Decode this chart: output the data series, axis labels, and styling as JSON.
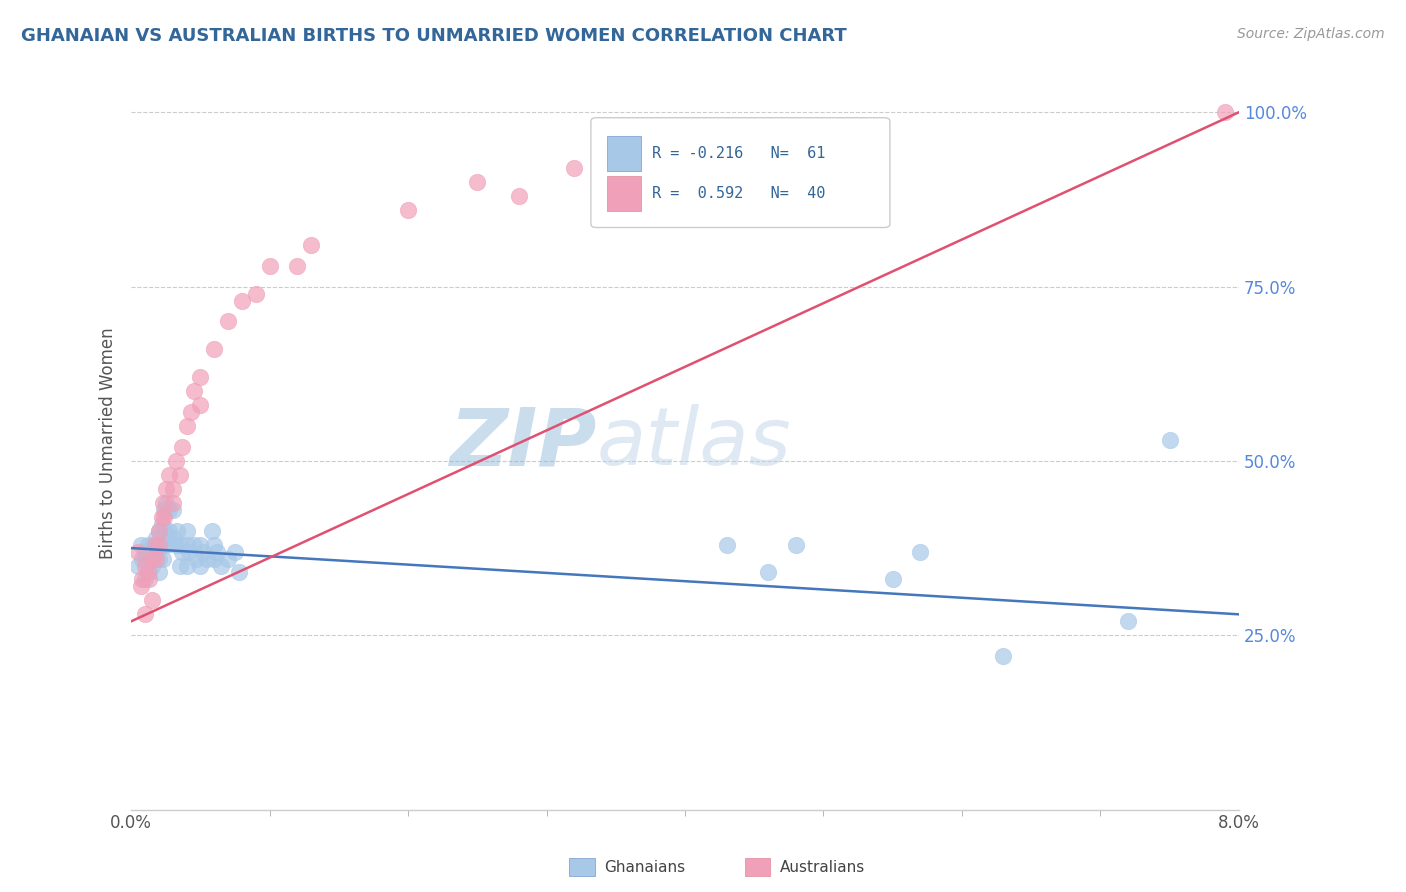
{
  "title": "GHANAIAN VS AUSTRALIAN BIRTHS TO UNMARRIED WOMEN CORRELATION CHART",
  "source": "Source: ZipAtlas.com",
  "ylabel": "Births to Unmarried Women",
  "ghanaian_color": "#a8c8e8",
  "australian_color": "#f0a0b8",
  "ghanaian_line_color": "#4477bb",
  "australian_line_color": "#e05070",
  "watermark_zip": "ZIP",
  "watermark_atlas": "atlas",
  "xmin": 0.0,
  "xmax": 0.08,
  "ymin": 0.0,
  "ymax": 1.05,
  "ghanaian_x": [
    0.0005,
    0.0007,
    0.0008,
    0.001,
    0.001,
    0.001,
    0.0012,
    0.0012,
    0.0013,
    0.0015,
    0.0015,
    0.0016,
    0.0017,
    0.0018,
    0.0018,
    0.002,
    0.002,
    0.002,
    0.0022,
    0.0022,
    0.0023,
    0.0023,
    0.0024,
    0.0024,
    0.0025,
    0.0025,
    0.0027,
    0.0027,
    0.003,
    0.003,
    0.0032,
    0.0033,
    0.0035,
    0.0035,
    0.0037,
    0.004,
    0.004,
    0.004,
    0.0042,
    0.0045,
    0.0047,
    0.005,
    0.005,
    0.0052,
    0.0055,
    0.0058,
    0.006,
    0.006,
    0.0062,
    0.0065,
    0.007,
    0.0075,
    0.0078,
    0.043,
    0.046,
    0.048,
    0.055,
    0.057,
    0.063,
    0.072,
    0.075
  ],
  "ghanaian_y": [
    0.35,
    0.38,
    0.36,
    0.37,
    0.33,
    0.36,
    0.36,
    0.38,
    0.34,
    0.37,
    0.35,
    0.38,
    0.36,
    0.39,
    0.37,
    0.4,
    0.36,
    0.34,
    0.41,
    0.38,
    0.38,
    0.36,
    0.43,
    0.4,
    0.44,
    0.38,
    0.43,
    0.4,
    0.43,
    0.39,
    0.38,
    0.4,
    0.38,
    0.35,
    0.37,
    0.4,
    0.38,
    0.35,
    0.37,
    0.38,
    0.36,
    0.38,
    0.35,
    0.37,
    0.36,
    0.4,
    0.38,
    0.36,
    0.37,
    0.35,
    0.36,
    0.37,
    0.34,
    0.38,
    0.34,
    0.38,
    0.33,
    0.37,
    0.22,
    0.27,
    0.53
  ],
  "australian_x": [
    0.0005,
    0.0007,
    0.0008,
    0.001,
    0.001,
    0.0012,
    0.0013,
    0.0015,
    0.0015,
    0.0017,
    0.0018,
    0.002,
    0.002,
    0.0022,
    0.0023,
    0.0024,
    0.0025,
    0.0027,
    0.003,
    0.003,
    0.0032,
    0.0035,
    0.0037,
    0.004,
    0.0043,
    0.0045,
    0.005,
    0.005,
    0.006,
    0.007,
    0.008,
    0.009,
    0.01,
    0.012,
    0.013,
    0.02,
    0.025,
    0.028,
    0.032,
    0.079
  ],
  "australian_y": [
    0.37,
    0.32,
    0.33,
    0.35,
    0.28,
    0.34,
    0.33,
    0.36,
    0.3,
    0.38,
    0.36,
    0.4,
    0.38,
    0.42,
    0.44,
    0.42,
    0.46,
    0.48,
    0.46,
    0.44,
    0.5,
    0.48,
    0.52,
    0.55,
    0.57,
    0.6,
    0.62,
    0.58,
    0.66,
    0.7,
    0.73,
    0.74,
    0.78,
    0.78,
    0.81,
    0.86,
    0.9,
    0.88,
    0.92,
    1.0
  ],
  "ghanaian_trend_x0": 0.0,
  "ghanaian_trend_y0": 0.375,
  "ghanaian_trend_x1": 0.08,
  "ghanaian_trend_y1": 0.28,
  "australian_trend_x0": 0.0,
  "australian_trend_y0": 0.27,
  "australian_trend_x1": 0.08,
  "australian_trend_y1": 1.0
}
